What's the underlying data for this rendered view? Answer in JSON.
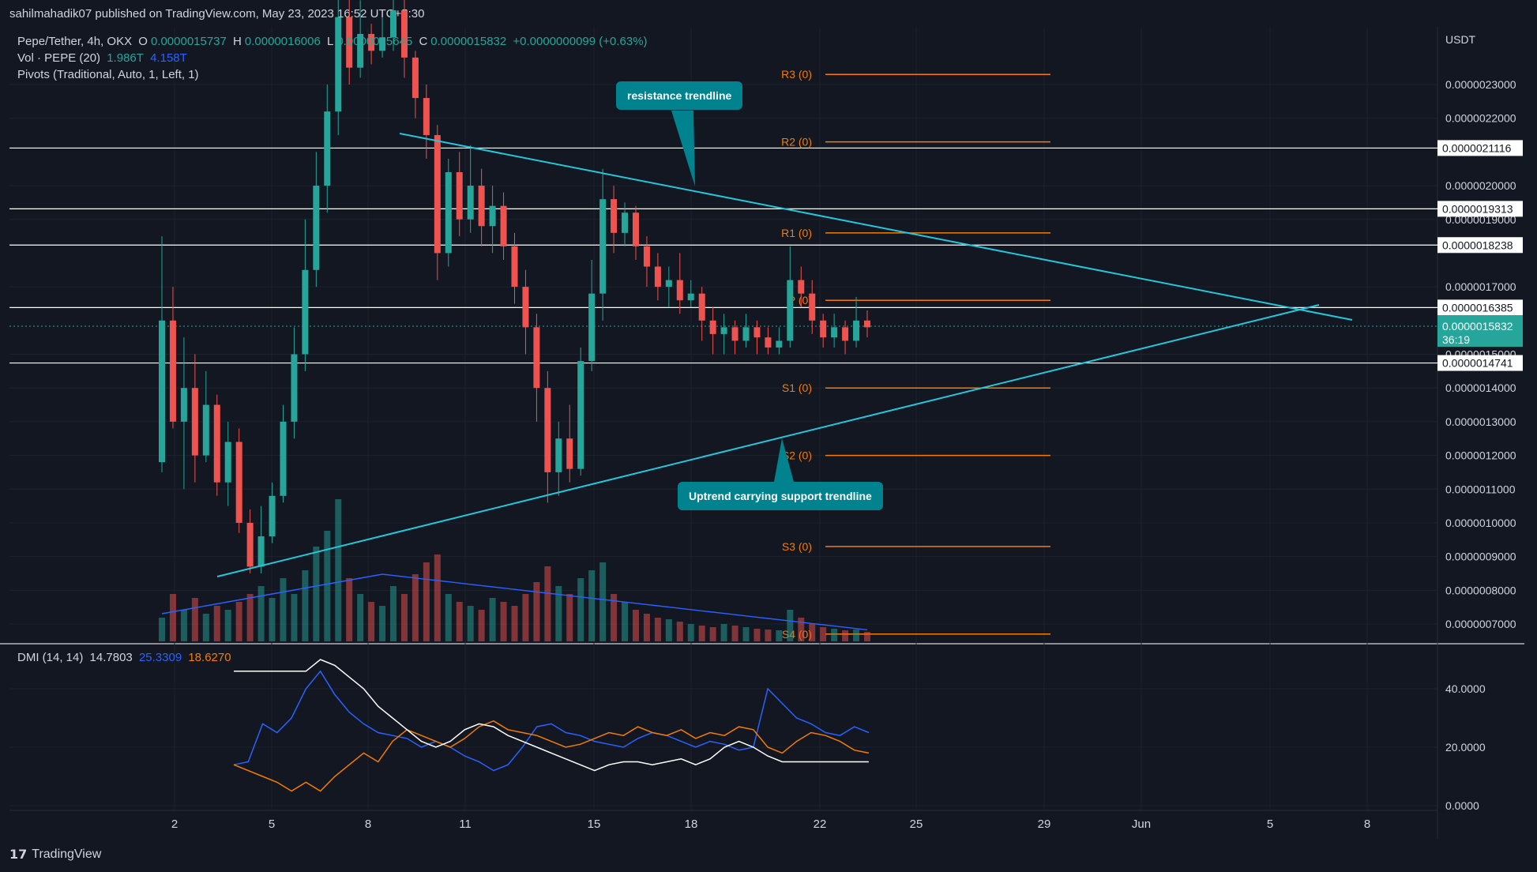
{
  "header": {
    "publisher": "sahilmahadik07 published on TradingView.com, May 23, 2023 16:52 UTC+5:30"
  },
  "legend": {
    "symbol": "Pepe/Tether, 4h, OKX",
    "o_label": "O",
    "o_val": "0.0000015737",
    "h_label": "H",
    "h_val": "0.0000016006",
    "l_label": "L",
    "l_val": "0.0000015645",
    "c_label": "C",
    "c_val": "0.0000015832",
    "change": "+0.0000000099 (+0.63%)",
    "vol_label": "Vol · PEPE (20)",
    "vol_val1": "1.986T",
    "vol_val2": "4.158T",
    "pivots": "Pivots (Traditional, Auto, 1, Left, 1)"
  },
  "dmi_legend": {
    "label": "DMI (14, 14)",
    "adx": "14.7803",
    "plus_di": "25.3309",
    "minus_di": "18.6270"
  },
  "currency": "USDT",
  "footer": {
    "brand": "TradingView"
  },
  "callouts": {
    "resistance": "resistance trendline",
    "support": "Uptrend carrying support trendline"
  },
  "price_tags": [
    {
      "value": "0.0000021116",
      "price": 2.1116e-06
    },
    {
      "value": "0.0000019313",
      "price": 1.9313e-06
    },
    {
      "value": "0.0000018238",
      "price": 1.8238e-06
    },
    {
      "value": "0.0000016385",
      "price": 1.6385e-06
    },
    {
      "value": "0.0000014741",
      "price": 1.4741e-06
    }
  ],
  "last_price": {
    "value": "0.0000015832",
    "timer": "36:19"
  },
  "colors": {
    "up": "#26a69a",
    "down": "#ef5350",
    "trend": "#26c6da",
    "pivot": "#f57c00",
    "plus_di": "#2962ff",
    "minus_di": "#f57c00",
    "adx": "#ffffff",
    "vol_ma": "#2962ff"
  },
  "chart_data": {
    "type": "candlestick",
    "price_axis": {
      "ticks": [
        "0.0000023000",
        "0.0000022000",
        "0.0000020000",
        "0.0000019000",
        "0.0000017000",
        "0.0000015000",
        "0.0000014000",
        "0.0000013000",
        "0.0000012000",
        "0.0000011000",
        "0.0000010000",
        "0.0000009000",
        "0.0000008000",
        "0.0000007000"
      ]
    },
    "x_ticks": [
      "2",
      "5",
      "8",
      "11",
      "15",
      "18",
      "22",
      "25",
      "29",
      "Jun",
      "5",
      "8"
    ],
    "pivots": [
      {
        "label": "R3 (0)",
        "price": 2.33e-06
      },
      {
        "label": "R2 (0)",
        "price": 2.13e-06
      },
      {
        "label": "R1 (0)",
        "price": 1.86e-06
      },
      {
        "label": "P (0)",
        "price": 1.66e-06
      },
      {
        "label": "S1 (0)",
        "price": 1.4e-06
      },
      {
        "label": "S2 (0)",
        "price": 1.2e-06
      },
      {
        "label": "S3 (0)",
        "price": 9.3e-07
      },
      {
        "label": "S4 (0)",
        "price": 6.7e-07
      }
    ],
    "dmi_axis": [
      "40.0000",
      "20.0000",
      "0.0000"
    ],
    "resistance_trendline": [
      {
        "date": "May 9",
        "price": 2.16e-06
      },
      {
        "date": "Jun 7",
        "price": 1.6e-06
      }
    ],
    "support_trendline": [
      {
        "date": "May 3",
        "price": 8.4e-07
      },
      {
        "date": "Jun 6",
        "price": 1.66e-06
      }
    ]
  }
}
